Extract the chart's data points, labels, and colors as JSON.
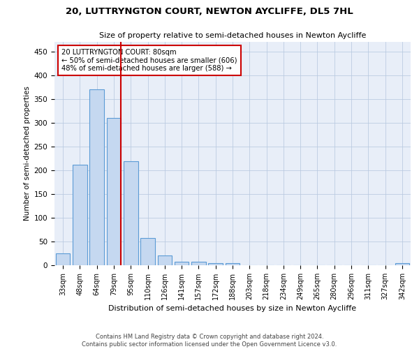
{
  "title": "20, LUTTRYNGTON COURT, NEWTON AYCLIFFE, DL5 7HL",
  "subtitle": "Size of property relative to semi-detached houses in Newton Aycliffe",
  "xlabel": "Distribution of semi-detached houses by size in Newton Aycliffe",
  "ylabel": "Number of semi-detached properties",
  "categories": [
    "33sqm",
    "48sqm",
    "64sqm",
    "79sqm",
    "95sqm",
    "110sqm",
    "126sqm",
    "141sqm",
    "157sqm",
    "172sqm",
    "188sqm",
    "203sqm",
    "218sqm",
    "234sqm",
    "249sqm",
    "265sqm",
    "280sqm",
    "296sqm",
    "311sqm",
    "327sqm",
    "342sqm"
  ],
  "values": [
    25,
    212,
    370,
    310,
    219,
    57,
    20,
    7,
    7,
    5,
    5,
    0,
    0,
    0,
    0,
    0,
    0,
    0,
    0,
    0,
    5
  ],
  "bar_color": "#c5d8f0",
  "bar_edge_color": "#5b9bd5",
  "annotation_title": "20 LUTTRYNGTON COURT: 80sqm",
  "annotation_line1": "← 50% of semi-detached houses are smaller (606)",
  "annotation_line2": "48% of semi-detached houses are larger (588) →",
  "annotation_box_color": "#ffffff",
  "annotation_box_edge_color": "#cc0000",
  "footer_line1": "Contains HM Land Registry data © Crown copyright and database right 2024.",
  "footer_line2": "Contains public sector information licensed under the Open Government Licence v3.0.",
  "ylim": [
    0,
    470
  ],
  "plot_background": "#e8eef8"
}
